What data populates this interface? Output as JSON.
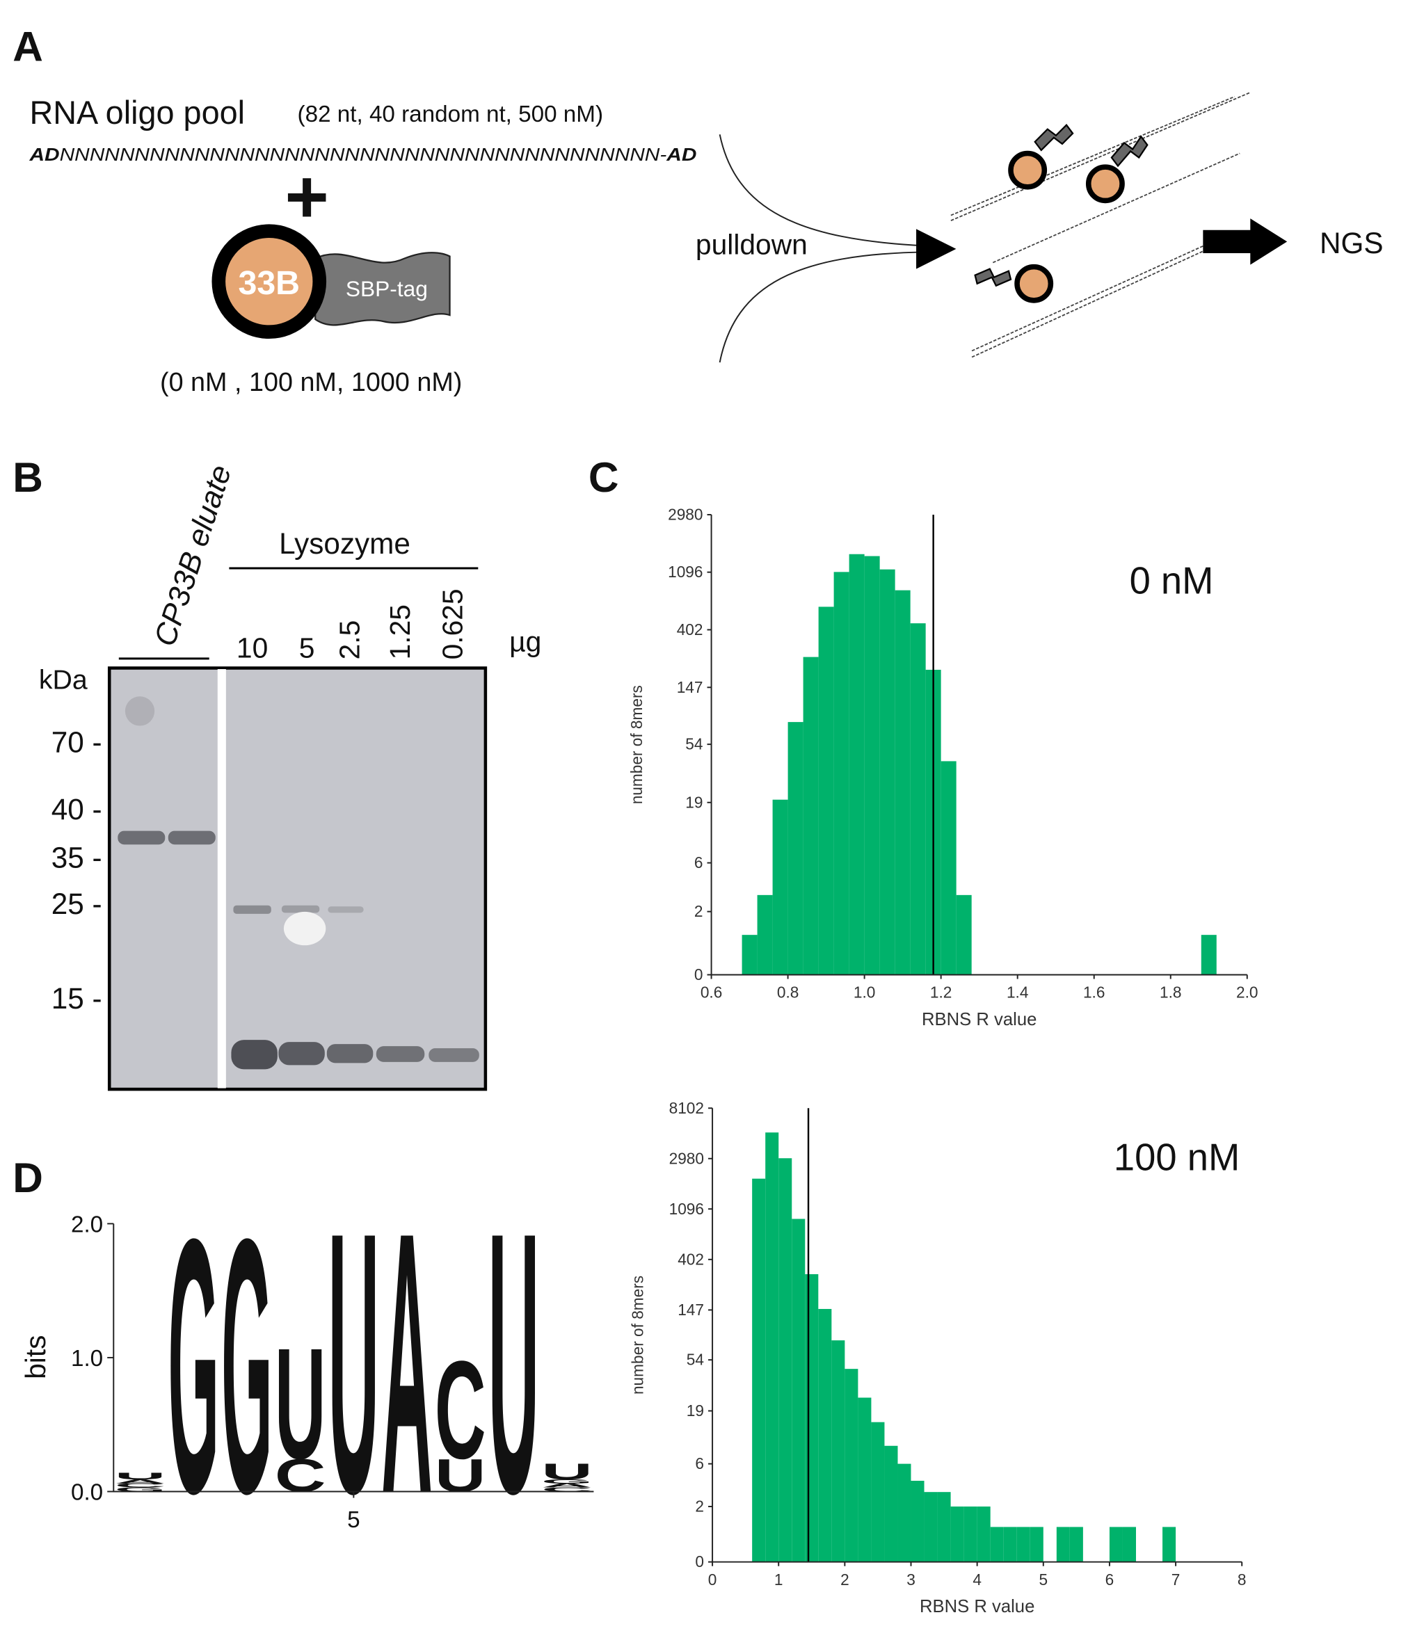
{
  "panel_a": {
    "label": "A",
    "pool_title": "RNA oligo pool",
    "pool_details": "(82 nt, 40 random nt, 500 nM)",
    "seq_prefix": "AD",
    "seq_random": "NNNNNNNNNNNNNNNNNNNNNNNNNNNNNNNNNNNNNNNN-",
    "seq_suffix": "AD",
    "plus": "+",
    "protein": "33B",
    "tag": "SBP-tag",
    "concentrations": "(0 nM , 100 nM, 1000 nM)",
    "step": "pulldown",
    "readout": "NGS"
  },
  "panel_b": {
    "label": "B",
    "eluate_label": "CP33B eluate",
    "lysozyme_label": "Lysozyme",
    "lysozyme_amounts": [
      "10",
      "5",
      "2.5",
      "1.25",
      "0.625"
    ],
    "amount_unit": "µg",
    "mw_unit": "kDa",
    "markers": [
      "70 -",
      "40 -",
      "35 -",
      "25 -",
      "15 -"
    ]
  },
  "panel_c": {
    "label": "C"
  },
  "panel_d": {
    "label": "D"
  },
  "chart_data": [
    {
      "type": "histogram",
      "annotation": "0 nM",
      "xlabel": "RBNS R value",
      "ylabel": "number of 8mers",
      "color": "#00b26b",
      "yscale": "log1p",
      "threshold": 1.18,
      "bins": [
        0.68,
        0.72,
        0.76,
        0.8,
        0.84,
        0.88,
        0.92,
        0.96,
        1.0,
        1.04,
        1.08,
        1.12,
        1.16,
        1.2,
        1.24,
        1.28,
        1.32,
        1.36,
        1.4,
        1.44,
        1.48,
        1.52,
        1.56,
        1.6,
        1.64,
        1.68,
        1.72,
        1.76,
        1.8,
        1.84,
        1.88,
        1.92
      ],
      "values": [
        1,
        3,
        20,
        80,
        250,
        600,
        1100,
        1500,
        1450,
        1150,
        800,
        450,
        200,
        40,
        3,
        0,
        0,
        0,
        0,
        0,
        0,
        0,
        0,
        0,
        0,
        0,
        0,
        0,
        0,
        0,
        1
      ],
      "xlim": [
        0.6,
        2.0
      ],
      "xticks": [
        0.6,
        0.8,
        {
          "value": 1,
          "label": "1.0"
        },
        1.2,
        1.4,
        1.6,
        1.8,
        {
          "value": 2,
          "label": "2.0"
        }
      ],
      "ylim": [
        0,
        2980
      ],
      "yticks": [
        0,
        2,
        6,
        19,
        54,
        147,
        402,
        1096,
        2980
      ]
    },
    {
      "type": "histogram",
      "annotation": "100 nM",
      "xlabel": "RBNS R value",
      "ylabel": "number of 8mers",
      "color": "#00b26b",
      "yscale": "log1p",
      "threshold": 1.45,
      "bins": [
        0.6,
        0.8,
        1.0,
        1.2,
        1.4,
        1.6,
        1.8,
        2.0,
        2.2,
        2.4,
        2.6,
        2.8,
        3.0,
        3.2,
        3.4,
        3.6,
        3.8,
        4.0,
        4.2,
        4.4,
        4.6,
        4.8,
        5.0,
        5.2,
        5.4,
        5.6,
        5.8,
        6.0,
        6.2,
        6.4,
        6.6,
        6.8,
        7.0
      ],
      "values": [
        2000,
        5000,
        3000,
        900,
        300,
        150,
        80,
        45,
        25,
        15,
        9,
        6,
        4,
        3,
        3,
        2,
        2,
        2,
        1,
        1,
        1,
        1,
        0,
        1,
        1,
        0,
        0,
        1,
        1,
        0,
        0,
        1
      ],
      "xlim": [
        0,
        8
      ],
      "xticks": [
        0,
        1,
        2,
        3,
        4,
        5,
        6,
        7,
        8
      ],
      "ylim": [
        0,
        8102
      ],
      "yticks": [
        0,
        2,
        6,
        19,
        54,
        147,
        402,
        1096,
        2980,
        8102
      ]
    },
    {
      "type": "logo",
      "ylabel": "bits",
      "letter_colors": {
        "A": "#0f8a3c",
        "C": "#2456b8",
        "G": "#f5a21e",
        "U": "#ee1c25"
      },
      "x": [
        1,
        2,
        3,
        4,
        5,
        6,
        7,
        8,
        9
      ],
      "positions": [
        {
          "letters": [
            "G",
            "C",
            "A",
            "U"
          ],
          "bits": [
            0.03,
            0.03,
            0.03,
            0.05
          ]
        },
        {
          "letters": [
            "G"
          ],
          "bits": [
            1.95
          ]
        },
        {
          "letters": [
            "G"
          ],
          "bits": [
            1.95
          ]
        },
        {
          "letters": [
            "C",
            "U"
          ],
          "bits": [
            0.25,
            0.85
          ]
        },
        {
          "letters": [
            "U"
          ],
          "bits": [
            2.0
          ]
        },
        {
          "letters": [
            "A"
          ],
          "bits": [
            2.0
          ]
        },
        {
          "letters": [
            "U",
            "C"
          ],
          "bits": [
            0.25,
            0.75
          ]
        },
        {
          "letters": [
            "U"
          ],
          "bits": [
            2.0
          ]
        },
        {
          "letters": [
            "C",
            "A",
            "G",
            "U"
          ],
          "bits": [
            0.03,
            0.03,
            0.03,
            0.12
          ]
        }
      ],
      "xlim": [
        0.5,
        9.5
      ],
      "xticks": [
        5
      ],
      "ylim": [
        0,
        2
      ],
      "yticks": [
        {
          "value": 0,
          "label": "0.0"
        },
        {
          "value": 1,
          "label": "1.0"
        },
        {
          "value": 2,
          "label": "2.0"
        }
      ]
    }
  ]
}
